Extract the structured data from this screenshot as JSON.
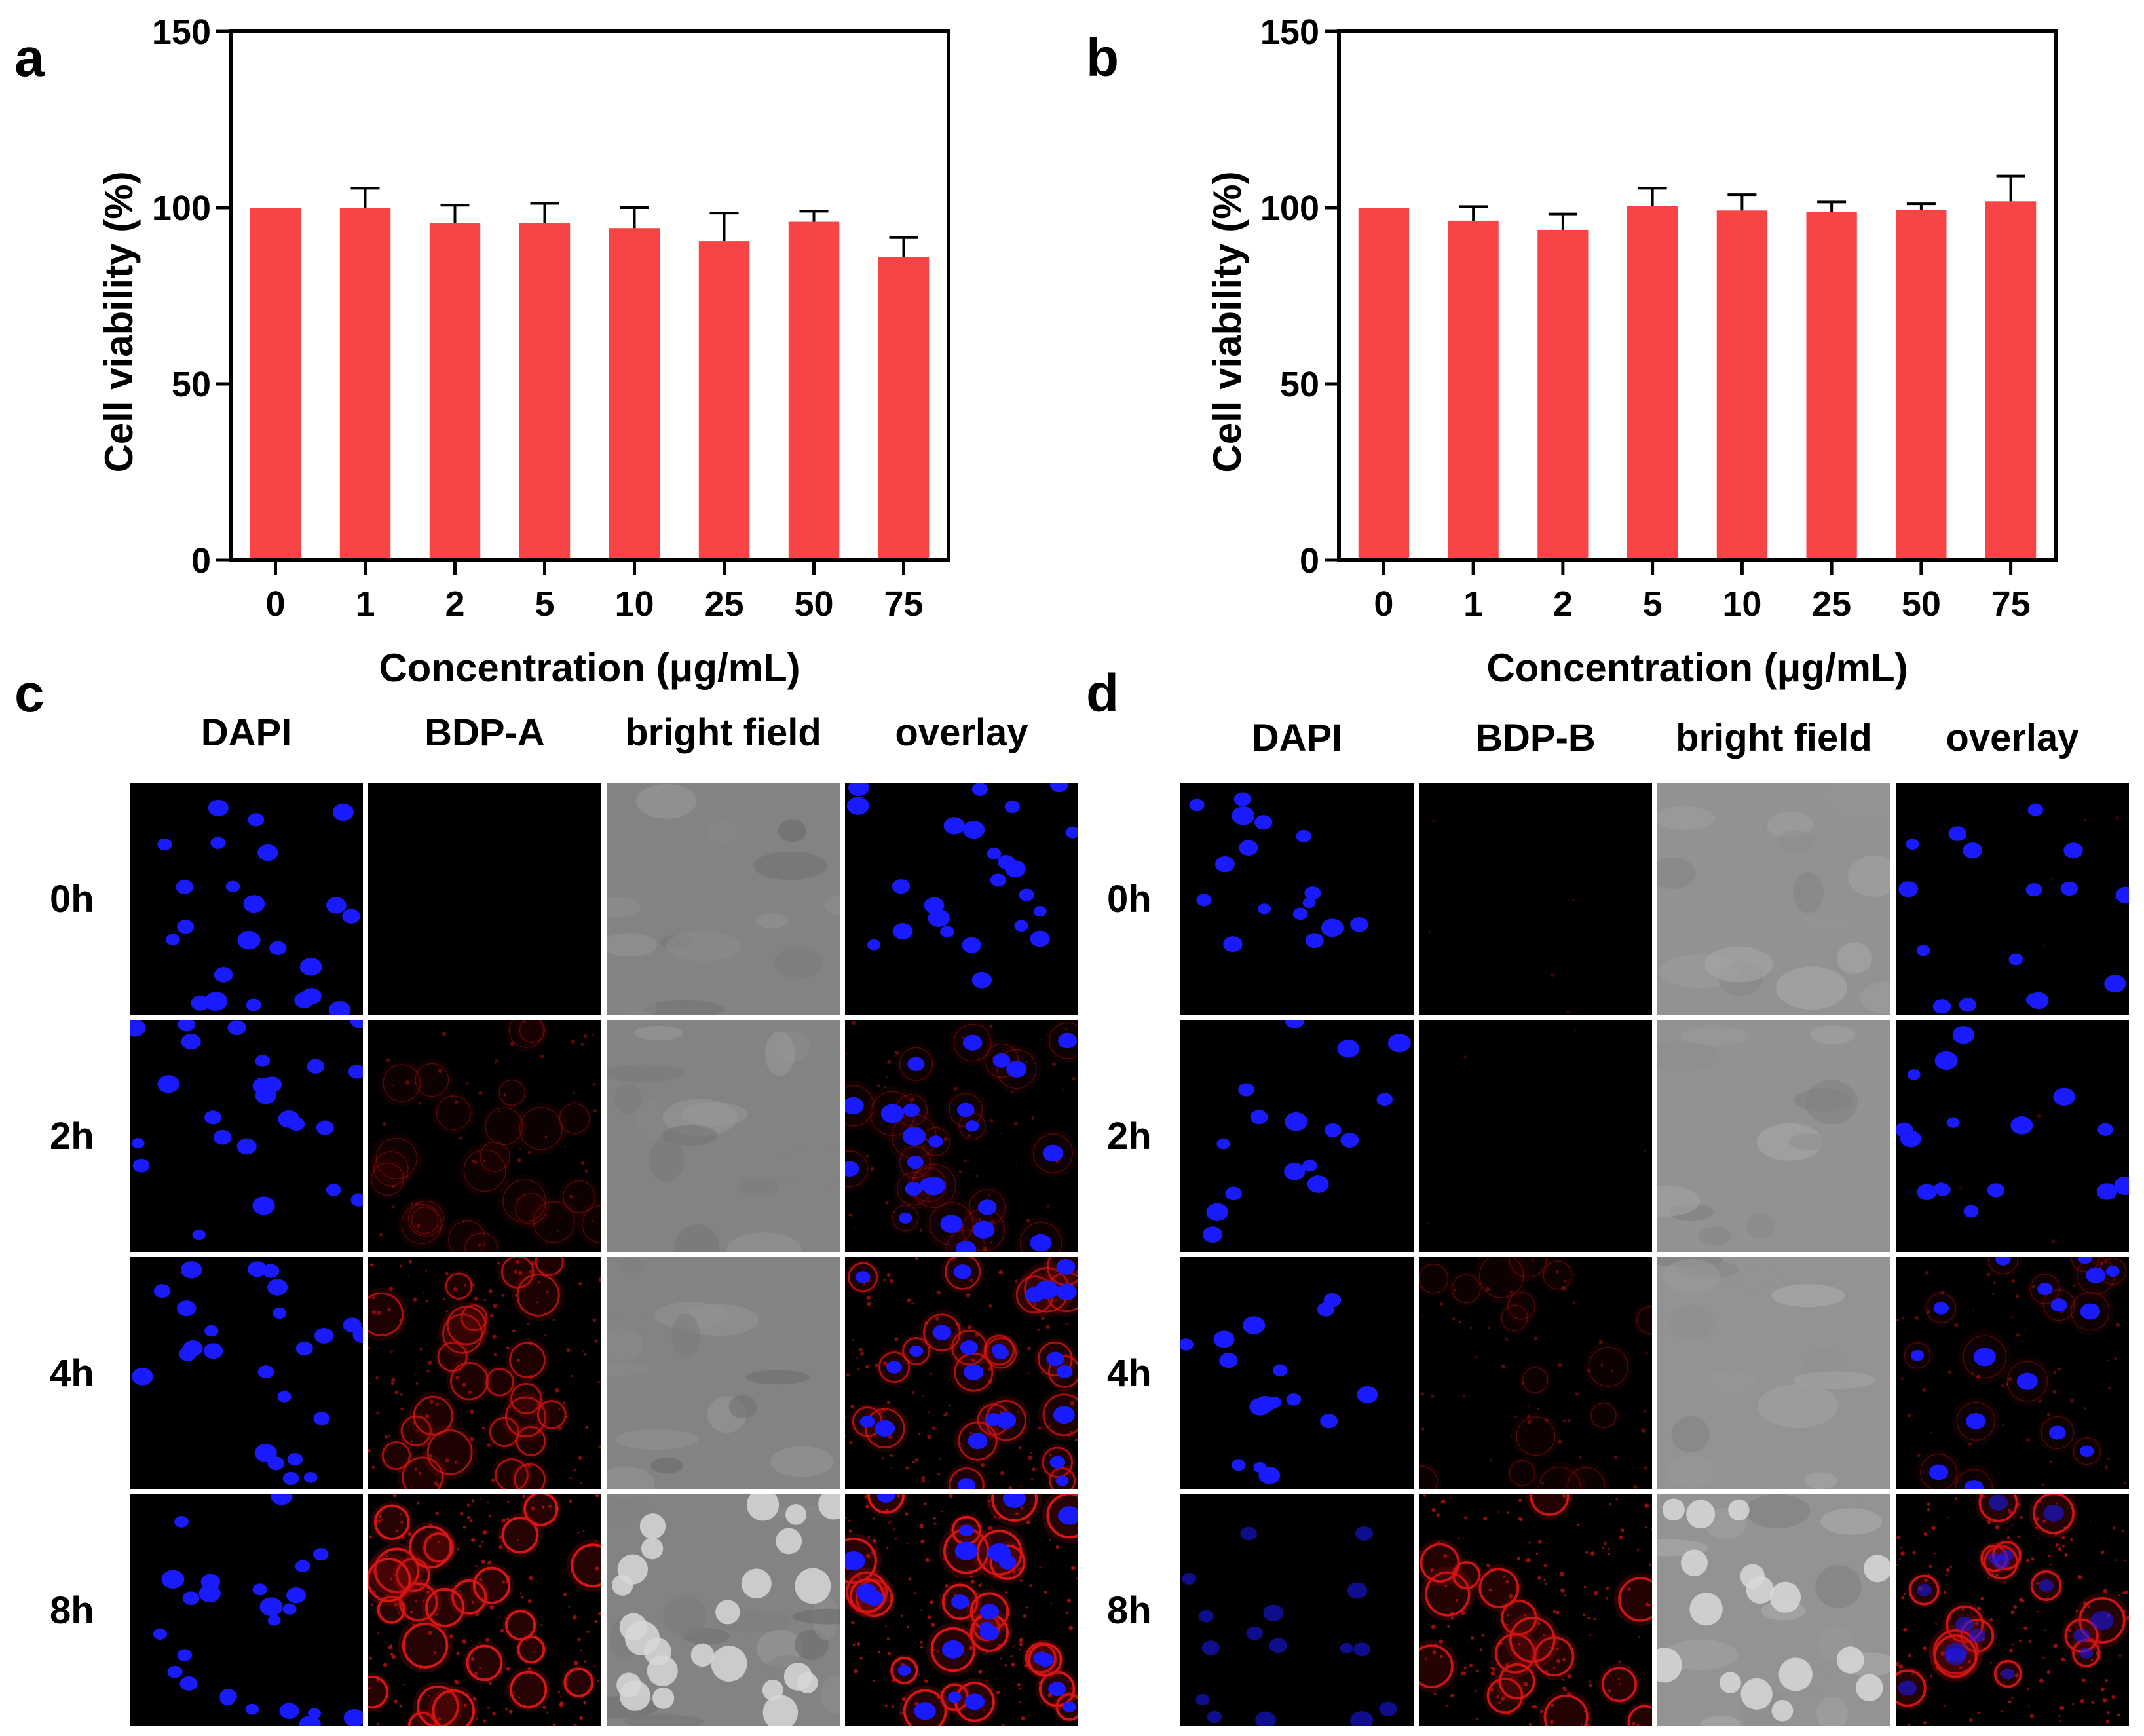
{
  "panels": {
    "a": "a",
    "b": "b",
    "c": "c",
    "d": "d"
  },
  "chart_data": [
    {
      "type": "bar",
      "panel": "a",
      "categories": [
        "0",
        "1",
        "2",
        "5",
        "10",
        "25",
        "50",
        "75"
      ],
      "values": [
        100,
        100,
        95.7,
        95.7,
        94.2,
        90.5,
        96,
        86
      ],
      "errors": [
        0,
        5.5,
        5,
        5.5,
        5.8,
        8,
        3,
        5.5
      ],
      "xlabel": "Concentration (μg/mL)",
      "ylabel": "Cell viability (%)",
      "ylim": [
        0,
        150
      ],
      "yticks": [
        "0",
        "50",
        "100",
        "150"
      ],
      "bar_color": "#f84444",
      "grid": false
    },
    {
      "type": "bar",
      "panel": "b",
      "categories": [
        "0",
        "1",
        "2",
        "5",
        "10",
        "25",
        "50",
        "75"
      ],
      "values": [
        100,
        96.3,
        93.7,
        100.5,
        99.2,
        98.8,
        99.3,
        101.8
      ],
      "errors": [
        0,
        4,
        4.5,
        5,
        4.5,
        2.8,
        1.8,
        7.2
      ],
      "xlabel": "Concentration (μg/mL)",
      "ylabel": "Cell viability (%)",
      "ylim": [
        0,
        150
      ],
      "yticks": [
        "0",
        "50",
        "100",
        "150"
      ],
      "bar_color": "#f84444",
      "grid": false
    }
  ],
  "imaging_c": {
    "columns": [
      "DAPI",
      "BDP-A",
      "bright field",
      "overlay"
    ],
    "rows": [
      "0h",
      "2h",
      "4h",
      "8h"
    ]
  },
  "imaging_d": {
    "columns": [
      "DAPI",
      "BDP-B",
      "bright field",
      "overlay"
    ],
    "rows": [
      "0h",
      "2h",
      "4h",
      "8h"
    ]
  },
  "colors": {
    "bar": "#f84444",
    "nucleus": "#1a1aff",
    "red_signal": "#e01010",
    "bright_field": "#8a8a8a"
  }
}
